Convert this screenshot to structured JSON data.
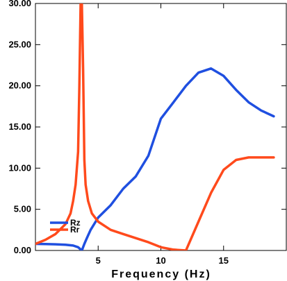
{
  "chart_data": {
    "type": "line",
    "title": "",
    "xlabel": "Frequency (Hz)",
    "ylabel": "",
    "xlim": [
      0,
      20
    ],
    "ylim": [
      0,
      30
    ],
    "x_ticks": [
      5,
      10,
      15
    ],
    "x_tick_labels": [
      "5",
      "10",
      "15"
    ],
    "y_ticks": [
      0,
      5,
      10,
      15,
      20,
      25,
      30
    ],
    "y_tick_labels": [
      "0.00",
      "5.00",
      "10.00",
      "15.00",
      "20.00",
      "25.00",
      "30.00"
    ],
    "grid": false,
    "legend_position": "bottom-left",
    "series": [
      {
        "name": "Rz",
        "color": "#1f4fe0",
        "x": [
          0,
          0.8,
          1.6,
          2.4,
          3.0,
          3.4,
          3.7,
          3.9,
          4.1,
          4.4,
          5.0,
          6.0,
          7.0,
          8.0,
          9.0,
          10.0,
          11.0,
          12.0,
          13.0,
          14.0,
          15.0,
          16.0,
          17.0,
          18.0,
          19.0
        ],
        "y": [
          0.8,
          0.78,
          0.75,
          0.7,
          0.6,
          0.4,
          0.0,
          0.8,
          1.5,
          2.5,
          4.0,
          5.5,
          7.5,
          9.0,
          11.5,
          16.0,
          18.0,
          20.0,
          21.6,
          22.1,
          21.2,
          19.5,
          18.0,
          17.0,
          16.3
        ]
      },
      {
        "name": "Rr",
        "color": "#ff4a1c",
        "x": [
          0,
          0.8,
          1.6,
          2.4,
          2.8,
          3.0,
          3.2,
          3.4,
          3.5,
          3.6,
          3.7,
          3.8,
          3.9,
          4.0,
          4.2,
          4.5,
          5.0,
          6.0,
          7.0,
          8.0,
          9.0,
          10.0,
          11.0,
          12.0,
          13.0,
          14.0,
          15.0,
          16.0,
          17.0,
          18.0,
          19.0
        ],
        "y": [
          0.8,
          1.3,
          2.0,
          3.2,
          4.5,
          6.0,
          8.0,
          12.0,
          20.0,
          30.0,
          30.0,
          22.0,
          11.0,
          8.0,
          6.0,
          4.5,
          3.5,
          2.5,
          2.0,
          1.5,
          1.0,
          0.4,
          0.1,
          0.0,
          3.5,
          7.0,
          9.8,
          11.0,
          11.3,
          11.3,
          11.3
        ]
      }
    ]
  }
}
